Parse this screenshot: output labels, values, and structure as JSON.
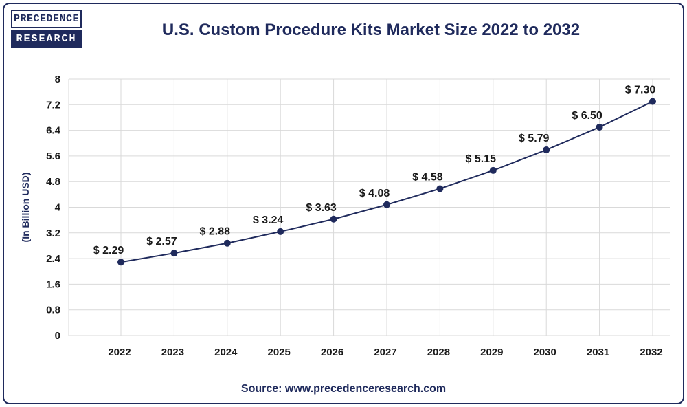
{
  "logo": {
    "line1": "PRECEDENCE",
    "line2": "RESEARCH"
  },
  "header": {
    "title": "U.S. Custom Procedure Kits Market Size 2022 to 2032"
  },
  "footer": {
    "source": "Source: www.precedenceresearch.com"
  },
  "colors": {
    "accent": "#1f2a5c",
    "line": "#1f2a5c",
    "grid": "#d9d9d9"
  },
  "chart_data": {
    "type": "line",
    "title": "U.S. Custom Procedure Kits Market Size 2022 to 2032",
    "xlabel": "",
    "ylabel": "(In Billion USD)",
    "categories": [
      "2022",
      "2023",
      "2024",
      "2025",
      "2026",
      "2027",
      "2028",
      "2029",
      "2030",
      "2031",
      "2032"
    ],
    "values": [
      2.29,
      2.57,
      2.88,
      3.24,
      3.63,
      4.08,
      4.58,
      5.15,
      5.79,
      6.5,
      7.3
    ],
    "value_labels": [
      "$ 2.29",
      "$ 2.57",
      "$ 2.88",
      "$ 3.24",
      "$ 3.63",
      "$ 4.08",
      "$ 4.58",
      "$ 5.15",
      "$ 5.79",
      "$ 6.50",
      "$ 7.30"
    ],
    "ylim": [
      0,
      8
    ],
    "yticks": [
      "0",
      "0.8",
      "1.6",
      "2.4",
      "3.2",
      "4",
      "4.8",
      "5.6",
      "6.4",
      "7.2",
      "8"
    ],
    "grid": true,
    "legend": "none"
  }
}
